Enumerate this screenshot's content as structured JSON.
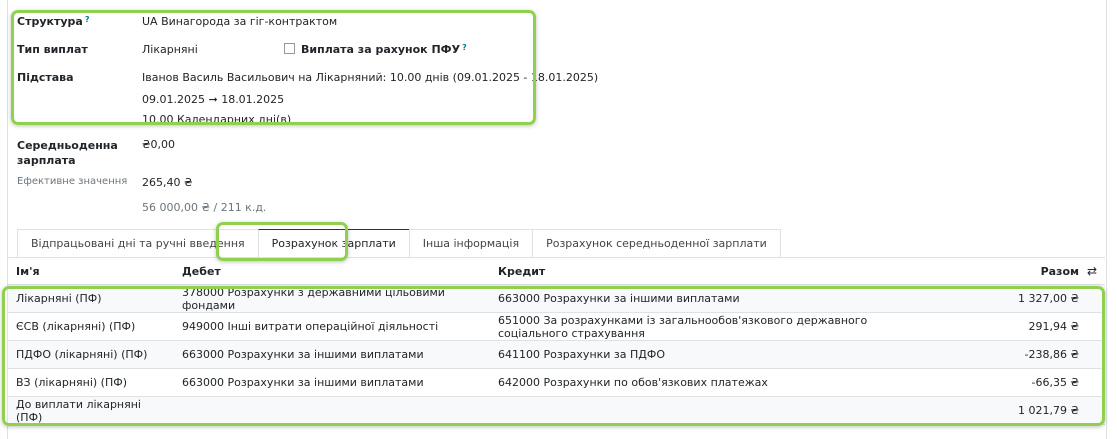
{
  "form": {
    "structure_label": "Структура",
    "structure_value": "UA Винагорода за гіг-контрактом",
    "pay_type_label": "Тип виплат",
    "pay_type_value": "Лікарняні",
    "pfu_checkbox_label": "Виплата за рахунок ПФУ",
    "pfu_checked": false,
    "basis_label": "Підстава",
    "basis_value": "Іванов Василь Васильович на Лікарняний: 10.00 днів (09.01.2025 - 18.01.2025)",
    "basis_dates": "09.01.2025 ➞ 18.01.2025",
    "basis_days": "10.00 Календарних дні(в)",
    "avg_salary_label_1": "Середньоденна",
    "avg_salary_label_2": "зарплата",
    "avg_salary_value": "₴0,00",
    "effective_label": "Ефективне значення",
    "effective_value": "265,40 ₴",
    "effective_formula": "56 000,00 ₴ / 211 к.д.",
    "help_mark": "?"
  },
  "tabs": [
    {
      "label": "Відпрацьовані дні та ручні введення"
    },
    {
      "label": "Розрахунок зарплати",
      "active": true
    },
    {
      "label": "Інша інформація"
    },
    {
      "label": "Розрахунок середньоденної зарплати"
    }
  ],
  "table": {
    "headers": {
      "name": "Ім'я",
      "debit": "Дебет",
      "credit": "Кредит",
      "total": "Разом"
    },
    "rows": [
      {
        "name": "Лікарняні (ПФ)",
        "debit": "378000 Розрахунки з державними цільовими фондами",
        "credit": "663000 Розрахунки за іншими виплатами",
        "total": "1 327,00 ₴"
      },
      {
        "name": "ЄСВ (лікарняні) (ПФ)",
        "debit": "949000 Інші витрати операційної діяльності",
        "credit": "651000 За розрахунками із загальнообов'язкового державного соціального страхування",
        "total": "291,94 ₴"
      },
      {
        "name": "ПДФО (лікарняні) (ПФ)",
        "debit": "663000 Розрахунки за іншими виплатами",
        "credit": "641100 Розрахунки за ПДФО",
        "total": "-238,86 ₴"
      },
      {
        "name": "ВЗ (лікарняні) (ПФ)",
        "debit": "663000 Розрахунки за іншими виплатами",
        "credit": "642000 Розрахунки по обов'язкових платежах",
        "total": "-66,35 ₴"
      },
      {
        "name": "До виплати лікарняні (ПФ)",
        "debit": "",
        "credit": "",
        "total": "1 021,79 ₴"
      }
    ]
  },
  "colors": {
    "highlight": "#8fd14f",
    "help": "#017e84"
  }
}
